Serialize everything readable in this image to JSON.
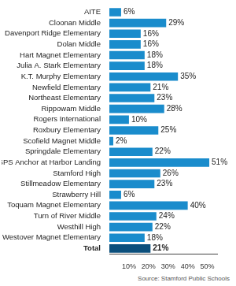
{
  "chart_data": {
    "type": "bar",
    "orientation": "horizontal",
    "categories": [
      "AITE",
      "Cloonan Middle",
      "Davenport Ridge Elementary",
      "Dolan Middle",
      "Hart Magnet Elementary",
      "Julia A. Stark Elementary",
      "K.T. Murphy Elementary",
      "Newfield Elementary",
      "Northeast Elementary",
      "Rippowam Middle",
      "Rogers International",
      "Roxbury Elementary",
      "Scofield Magnet Middle",
      "Springdale Elementary",
      "SPS Anchor at Harbor Landing",
      "Stamford High",
      "Stillmeadow Elementary",
      "Strawberry Hill",
      "Toquam Magnet Elementary",
      "Turn of River Middle",
      "Westhill High",
      "Westover Magnet Elementary",
      "Total"
    ],
    "values": [
      6,
      29,
      16,
      16,
      18,
      18,
      35,
      21,
      23,
      28,
      10,
      25,
      2,
      22,
      51,
      26,
      23,
      6,
      40,
      24,
      22,
      18,
      21
    ],
    "value_labels": [
      "6%",
      "29%",
      "16%",
      "16%",
      "18%",
      "18%",
      "35%",
      "21%",
      "23%",
      "28%",
      "10%",
      "25%",
      "2%",
      "22%",
      "51%",
      "26%",
      "23%",
      "6%",
      "40%",
      "24%",
      "22%",
      "18%",
      "21%"
    ],
    "colors": [
      "#1a8ccc",
      "#1a8ccc",
      "#1a8ccc",
      "#1a8ccc",
      "#1a8ccc",
      "#1a8ccc",
      "#1a8ccc",
      "#1a8ccc",
      "#1a8ccc",
      "#1a8ccc",
      "#1a8ccc",
      "#1a8ccc",
      "#1a8ccc",
      "#1a8ccc",
      "#1a8ccc",
      "#1a8ccc",
      "#1a8ccc",
      "#1a8ccc",
      "#1a8ccc",
      "#1a8ccc",
      "#1a8ccc",
      "#1a8ccc",
      "#0b4f7c"
    ],
    "xlim": [
      0,
      55
    ],
    "xticks": [
      {
        "value": 10,
        "label": "10%"
      },
      {
        "value": 20,
        "label": "20%"
      },
      {
        "value": 30,
        "label": "30%"
      },
      {
        "value": 40,
        "label": "40%"
      },
      {
        "value": 50,
        "label": "50%"
      }
    ],
    "grid": false,
    "data_labels": true,
    "annotations": [
      "Source: Stamford Public Schools"
    ]
  }
}
